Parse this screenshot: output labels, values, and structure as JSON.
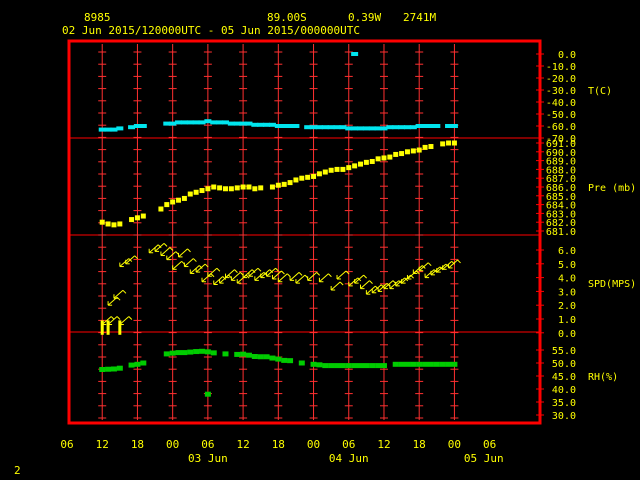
{
  "header": {
    "station_id": "8985",
    "lat": "89.00S",
    "lon": "0.39W",
    "elev": "2741M",
    "time_range": "02 Jun 2015/120000UTC - 05 Jun 2015/000000UTC"
  },
  "footer": {
    "page_number": "2"
  },
  "colors": {
    "frame": "#ff0000",
    "grid": "#ff3030",
    "axis_text": "#ffff00",
    "temperature": "#00e5ee",
    "pressure": "#ffff00",
    "wind": "#ffff00",
    "humidity": "#00cc00"
  },
  "chart_data": {
    "type": "scatter",
    "x_unit": "hours since 02 Jun 00UTC",
    "x_ticks": [
      "06",
      "12",
      "18",
      "00",
      "06",
      "12",
      "18",
      "00",
      "06",
      "12",
      "18",
      "00",
      "06"
    ],
    "x_tick_hours": [
      6,
      12,
      18,
      24,
      30,
      36,
      42,
      48,
      54,
      60,
      66,
      72,
      78
    ],
    "x_day_labels": [
      {
        "label": "03 Jun",
        "hour": 30
      },
      {
        "label": "04 Jun",
        "hour": 54
      },
      {
        "label": "05 Jun",
        "hour": 77
      }
    ],
    "panels": [
      {
        "name": "temperature",
        "label": "T(C)",
        "ticks": [
          "0.0",
          "-10.0",
          "-20.0",
          "-30.0",
          "-40.0",
          "-50.0",
          "-60.0",
          "-70.0"
        ],
        "tick_values": [
          0,
          -10,
          -20,
          -30,
          -40,
          -50,
          -60,
          -70
        ],
        "label_value": -30,
        "points": [
          [
            12,
            -63
          ],
          [
            13,
            -63
          ],
          [
            14,
            -63
          ],
          [
            15,
            -62
          ],
          [
            17,
            -61
          ],
          [
            18,
            -60
          ],
          [
            19,
            -60
          ],
          [
            23,
            -58
          ],
          [
            24,
            -58
          ],
          [
            25,
            -57
          ],
          [
            26,
            -57
          ],
          [
            27,
            -57
          ],
          [
            28,
            -57
          ],
          [
            29,
            -57
          ],
          [
            30,
            -56
          ],
          [
            31,
            -57
          ],
          [
            32,
            -57
          ],
          [
            33,
            -57
          ],
          [
            34,
            -58
          ],
          [
            35,
            -58
          ],
          [
            36,
            -58
          ],
          [
            37,
            -58
          ],
          [
            38,
            -59
          ],
          [
            39,
            -59
          ],
          [
            40,
            -59
          ],
          [
            41,
            -59
          ],
          [
            42,
            -60
          ],
          [
            43,
            -60
          ],
          [
            44,
            -60
          ],
          [
            45,
            -60
          ],
          [
            47,
            -61
          ],
          [
            48,
            -61
          ],
          [
            49,
            -61
          ],
          [
            50,
            -61
          ],
          [
            51,
            -61
          ],
          [
            52,
            -61
          ],
          [
            53,
            -61
          ],
          [
            54,
            -62
          ],
          [
            55,
            -62
          ],
          [
            56,
            -62
          ],
          [
            57,
            -62
          ],
          [
            58,
            -62
          ],
          [
            59,
            -62
          ],
          [
            60,
            -62
          ],
          [
            61,
            -61
          ],
          [
            62,
            -61
          ],
          [
            63,
            -61
          ],
          [
            64,
            -61
          ],
          [
            65,
            -61
          ],
          [
            66,
            -60
          ],
          [
            67,
            -60
          ],
          [
            68,
            -60
          ],
          [
            69,
            -60
          ],
          [
            71,
            -60
          ],
          [
            72,
            -60
          ],
          [
            55,
            0
          ]
        ]
      },
      {
        "name": "pressure",
        "label": "Pre (mb)",
        "ticks": [
          "691.0",
          "690.0",
          "689.0",
          "688.0",
          "687.0",
          "686.0",
          "685.0",
          "684.0",
          "683.0",
          "682.0",
          "681.0"
        ],
        "tick_values": [
          691,
          690,
          689,
          688,
          687,
          686,
          685,
          684,
          683,
          682,
          681
        ],
        "label_value": 686,
        "points": [
          [
            12,
            682.0
          ],
          [
            13,
            681.8
          ],
          [
            14,
            681.7
          ],
          [
            15,
            681.8
          ],
          [
            17,
            682.3
          ],
          [
            18,
            682.5
          ],
          [
            19,
            682.7
          ],
          [
            22,
            683.5
          ],
          [
            23,
            684.0
          ],
          [
            24,
            684.3
          ],
          [
            25,
            684.5
          ],
          [
            26,
            684.7
          ],
          [
            27,
            685.2
          ],
          [
            28,
            685.4
          ],
          [
            29,
            685.6
          ],
          [
            30,
            685.8
          ],
          [
            31,
            686.0
          ],
          [
            32,
            685.9
          ],
          [
            33,
            685.8
          ],
          [
            34,
            685.8
          ],
          [
            35,
            685.9
          ],
          [
            36,
            686.0
          ],
          [
            37,
            686.0
          ],
          [
            38,
            685.8
          ],
          [
            39,
            685.9
          ],
          [
            41,
            686.0
          ],
          [
            42,
            686.2
          ],
          [
            43,
            686.3
          ],
          [
            44,
            686.5
          ],
          [
            45,
            686.8
          ],
          [
            46,
            687.0
          ],
          [
            47,
            687.1
          ],
          [
            48,
            687.2
          ],
          [
            49,
            687.5
          ],
          [
            50,
            687.7
          ],
          [
            51,
            687.9
          ],
          [
            52,
            688.0
          ],
          [
            53,
            688.0
          ],
          [
            54,
            688.2
          ],
          [
            55,
            688.4
          ],
          [
            56,
            688.6
          ],
          [
            57,
            688.8
          ],
          [
            58,
            688.9
          ],
          [
            59,
            689.2
          ],
          [
            60,
            689.3
          ],
          [
            61,
            689.4
          ],
          [
            62,
            689.7
          ],
          [
            63,
            689.8
          ],
          [
            64,
            690.0
          ],
          [
            65,
            690.1
          ],
          [
            66,
            690.2
          ],
          [
            67,
            690.5
          ],
          [
            68,
            690.6
          ],
          [
            70,
            690.9
          ],
          [
            71,
            691.0
          ],
          [
            72,
            691.0
          ]
        ]
      },
      {
        "name": "wind",
        "label": "SPD(MPS)",
        "ticks": [
          "6.0",
          "5.0",
          "4.0",
          "3.0",
          "2.0",
          "1.0",
          "0.0"
        ],
        "tick_values": [
          6,
          5,
          4,
          3,
          2,
          1,
          0
        ],
        "label_value": 3.6,
        "calm_hours": [
          12,
          13,
          15
        ],
        "points": [
          [
            12,
            0.6
          ],
          [
            13,
            0.6
          ],
          [
            15,
            0.6
          ],
          [
            13,
            2.0
          ],
          [
            14,
            2.5
          ],
          [
            15,
            4.8
          ],
          [
            16,
            5.0
          ],
          [
            20,
            5.8
          ],
          [
            21,
            5.9
          ],
          [
            22,
            5.6
          ],
          [
            23,
            5.3
          ],
          [
            24,
            4.6
          ],
          [
            25,
            5.5
          ],
          [
            26,
            4.8
          ],
          [
            27,
            4.3
          ],
          [
            28,
            4.4
          ],
          [
            29,
            3.7
          ],
          [
            30,
            4.1
          ],
          [
            31,
            3.5
          ],
          [
            32,
            3.6
          ],
          [
            33,
            4.0
          ],
          [
            34,
            3.8
          ],
          [
            35,
            3.6
          ],
          [
            36,
            4.0
          ],
          [
            37,
            4.1
          ],
          [
            38,
            3.8
          ],
          [
            39,
            4.0
          ],
          [
            40,
            4.1
          ],
          [
            41,
            3.9
          ],
          [
            42,
            3.7
          ],
          [
            44,
            3.8
          ],
          [
            45,
            3.6
          ],
          [
            47,
            3.8
          ],
          [
            49,
            3.7
          ],
          [
            51,
            3.1
          ],
          [
            52,
            3.9
          ],
          [
            54,
            3.4
          ],
          [
            55,
            3.6
          ],
          [
            56,
            3.2
          ],
          [
            57,
            2.8
          ],
          [
            58,
            2.9
          ],
          [
            59,
            3.0
          ],
          [
            60,
            3.2
          ],
          [
            61,
            3.2
          ],
          [
            62,
            3.4
          ],
          [
            63,
            3.6
          ],
          [
            64,
            3.9
          ],
          [
            65,
            4.3
          ],
          [
            66,
            4.5
          ],
          [
            67,
            4.0
          ],
          [
            68,
            4.2
          ],
          [
            69,
            4.4
          ],
          [
            70,
            4.6
          ],
          [
            71,
            4.7
          ]
        ]
      },
      {
        "name": "humidity",
        "label": "RH(%)",
        "ticks": [
          "55.0",
          "50.0",
          "45.0",
          "40.0",
          "35.0",
          "30.0"
        ],
        "tick_values": [
          55,
          50,
          45,
          40,
          35,
          30
        ],
        "label_value": 45,
        "points": [
          [
            12,
            47.5
          ],
          [
            13,
            47.6
          ],
          [
            14,
            47.7
          ],
          [
            15,
            48.0
          ],
          [
            17,
            49.2
          ],
          [
            18,
            49.5
          ],
          [
            19,
            50.0
          ],
          [
            23,
            53.5
          ],
          [
            24,
            53.8
          ],
          [
            25,
            54.0
          ],
          [
            26,
            54.0
          ],
          [
            27,
            54.2
          ],
          [
            28,
            54.4
          ],
          [
            29,
            54.5
          ],
          [
            30,
            54.3
          ],
          [
            31,
            53.9
          ],
          [
            33,
            53.5
          ],
          [
            35,
            53.3
          ],
          [
            36,
            53.4
          ],
          [
            37,
            53.0
          ],
          [
            38,
            52.5
          ],
          [
            39,
            52.4
          ],
          [
            40,
            52.4
          ],
          [
            41,
            51.9
          ],
          [
            42,
            51.5
          ],
          [
            43,
            51.0
          ],
          [
            44,
            50.9
          ],
          [
            46,
            50.0
          ],
          [
            48,
            49.5
          ],
          [
            49,
            49.3
          ],
          [
            50,
            49.0
          ],
          [
            51,
            49.0
          ],
          [
            52,
            49.0
          ],
          [
            53,
            49.0
          ],
          [
            54,
            49.0
          ],
          [
            55,
            49.0
          ],
          [
            56,
            49.0
          ],
          [
            57,
            49.0
          ],
          [
            58,
            49.0
          ],
          [
            59,
            49.0
          ],
          [
            60,
            49.0
          ],
          [
            62,
            49.5
          ],
          [
            63,
            49.5
          ],
          [
            64,
            49.5
          ],
          [
            65,
            49.5
          ],
          [
            66,
            49.5
          ],
          [
            67,
            49.5
          ],
          [
            68,
            49.5
          ],
          [
            69,
            49.5
          ],
          [
            70,
            49.5
          ],
          [
            71,
            49.5
          ],
          [
            72,
            49.5
          ],
          [
            30,
            38.0
          ]
        ]
      }
    ]
  }
}
